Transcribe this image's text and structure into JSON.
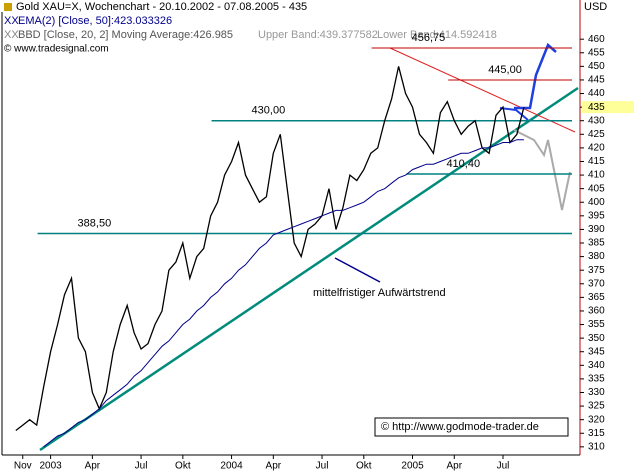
{
  "chart_data": {
    "type": "line",
    "title": "Gold XAU=X, Wochenchart - 20.10.2002 - 07.08.2005 - 435",
    "legend_items": [
      "EMA(2) [Close, 50]:423.033326",
      "BBD [Close, 20, 2] Moving Average:426.985",
      "Upper Band:439.377582",
      "Lower Band:414.592418"
    ],
    "source": "© www.tradesignal.com",
    "watermark": "© http://www.godmode-trader.de",
    "y_unit": "USD",
    "annotation": "mittelfristiger Aufwärtstrend",
    "last_price": 435,
    "categories": [
      null,
      "Nov",
      null,
      null,
      null,
      "2003",
      null,
      null,
      null,
      null,
      null,
      "Apr",
      null,
      null,
      null,
      null,
      null,
      null,
      "Jul",
      null,
      null,
      null,
      null,
      null,
      "Okt",
      null,
      null,
      null,
      null,
      null,
      null,
      "2004",
      null,
      null,
      null,
      null,
      null,
      "Apr",
      null,
      null,
      null,
      null,
      null,
      null,
      "Jul",
      null,
      null,
      null,
      null,
      null,
      "Okt",
      null,
      null,
      null,
      null,
      null,
      null,
      "2005",
      null,
      null,
      null,
      null,
      null,
      "Apr",
      null,
      null,
      null,
      null,
      null,
      null,
      "Jul",
      null,
      null,
      null
    ],
    "series": [
      {
        "name": "Gold XAU=X",
        "color": "#000000",
        "values": [
          316,
          318,
          320,
          318,
          332,
          345,
          355,
          366,
          372,
          350,
          345,
          330,
          324,
          330,
          345,
          355,
          362,
          352,
          346,
          348,
          355,
          360,
          375,
          378,
          385,
          372,
          380,
          383,
          395,
          400,
          410,
          415,
          422,
          410,
          405,
          400,
          402,
          418,
          425,
          405,
          385,
          380,
          390,
          392,
          395,
          405,
          390,
          398,
          410,
          408,
          412,
          418,
          420,
          430,
          438,
          450,
          440,
          435,
          425,
          422,
          418,
          433,
          437,
          430,
          425,
          428,
          430,
          420,
          418,
          432,
          435,
          422,
          425,
          435
        ]
      },
      {
        "name": "EMA(2) [Close, 50]",
        "color": "#00008b",
        "values": [
          null,
          null,
          null,
          null,
          310,
          312,
          314,
          315,
          317,
          319,
          320,
          322,
          324,
          327,
          329,
          331,
          333,
          336,
          338,
          341,
          344,
          347,
          349,
          352,
          355,
          357,
          360,
          362,
          365,
          367,
          370,
          372,
          375,
          377,
          380,
          383,
          385,
          388,
          389,
          390,
          391,
          392,
          393,
          394,
          395,
          396,
          397,
          397,
          398,
          399,
          400,
          402,
          404,
          405,
          407,
          409,
          410,
          412,
          413,
          414,
          414,
          415,
          416,
          417,
          418,
          418,
          419,
          420,
          420,
          421,
          422,
          422,
          423,
          423
        ]
      }
    ],
    "levels": [
      {
        "value": 456.75,
        "label": "456,75",
        "color": "#c00000"
      },
      {
        "value": 445,
        "label": "445,00",
        "color": "#c00000"
      },
      {
        "value": 430,
        "label": "430,00",
        "color": "#008080"
      },
      {
        "value": 410.4,
        "label": "410,40",
        "color": "#008080"
      },
      {
        "value": 388.5,
        "label": "388,50",
        "color": "#008080"
      }
    ],
    "ylim": [
      307,
      470
    ],
    "yticks": [
      310,
      315,
      320,
      325,
      330,
      335,
      340,
      345,
      350,
      355,
      360,
      365,
      370,
      375,
      380,
      385,
      390,
      395,
      400,
      405,
      410,
      415,
      420,
      425,
      430,
      435,
      440,
      445,
      450,
      455,
      460
    ]
  }
}
